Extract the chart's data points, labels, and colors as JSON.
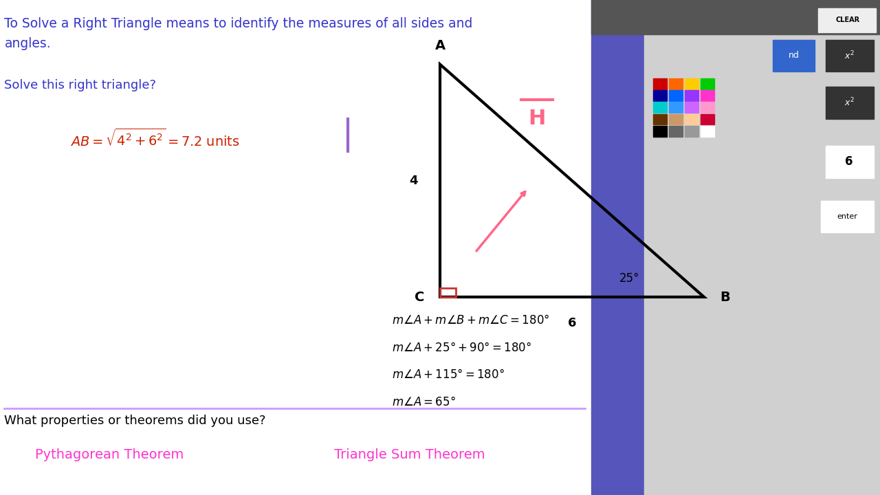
{
  "bg_color": "#ffffff",
  "title_text": "To Solve a Right Triangle means to identify the measures of all sides and",
  "title_text2": "angles.",
  "question_text": "Solve this right triangle?",
  "formula_text": "AB= \\sqrt{4^2 + 6^2} = 7.2 \\text{ units}",
  "triangle": {
    "A": [
      0.52,
      0.62
    ],
    "B": [
      0.82,
      0.28
    ],
    "C": [
      0.52,
      0.28
    ],
    "label_A": "A",
    "label_B": "B",
    "label_C": "C",
    "side_AC": "4",
    "side_CB": "6",
    "angle_B": "25°"
  },
  "equations": [
    "m\\angle A + m\\angle B + m\\angle C = 180\\degree",
    "m\\angle A + 25\\degree + 90\\degree = 180\\degree",
    "m\\angle A + 115\\degree = 180\\degree",
    "m\\angle A = 65\\degree"
  ],
  "footer_question": "What properties or theorems did you use?",
  "theorem1": "Pythagorean Theorem",
  "theorem2": "Triangle Sum Theorem",
  "title_color": "#3333cc",
  "question_color": "#3333cc",
  "formula_color": "#cc2200",
  "equation_color": "#000000",
  "footer_color": "#000000",
  "theorem_color": "#ff33cc",
  "divider_color": "#cc99ff",
  "purple_bar_color": "#9966cc"
}
